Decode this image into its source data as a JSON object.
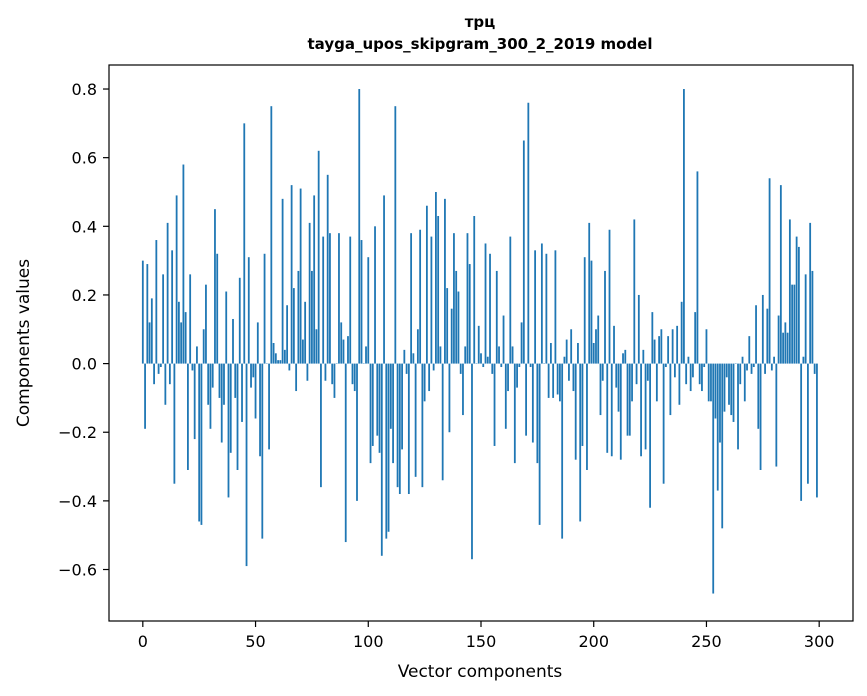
{
  "chart_data": {
    "type": "bar",
    "title": "трц",
    "subtitle": "tayga_upos_skipgram_300_2_2019 model",
    "xlabel": "Vector components",
    "ylabel": "Components values",
    "xlim": [
      -15,
      315
    ],
    "ylim": [
      -0.75,
      0.87
    ],
    "xticks": [
      0,
      50,
      100,
      150,
      200,
      250,
      300
    ],
    "yticks": [
      -0.6,
      -0.4,
      -0.2,
      0.0,
      0.2,
      0.4,
      0.6,
      0.8
    ],
    "xtick_labels": [
      "0",
      "50",
      "100",
      "150",
      "200",
      "250",
      "300"
    ],
    "ytick_labels": [
      "−0.6",
      "−0.4",
      "−0.2",
      "0.0",
      "0.2",
      "0.4",
      "0.6",
      "0.8"
    ],
    "bar_color": "#1f77b4",
    "values": [
      0.3,
      -0.19,
      0.29,
      0.12,
      0.19,
      -0.06,
      0.36,
      -0.03,
      -0.01,
      0.26,
      -0.12,
      0.41,
      -0.06,
      0.33,
      -0.35,
      0.49,
      0.18,
      0.12,
      0.58,
      0.15,
      -0.31,
      0.26,
      -0.02,
      -0.22,
      0.05,
      -0.46,
      -0.47,
      0.1,
      0.23,
      -0.12,
      -0.19,
      -0.07,
      0.45,
      0.32,
      -0.1,
      -0.23,
      -0.12,
      0.21,
      -0.39,
      -0.26,
      0.13,
      -0.1,
      -0.31,
      0.25,
      -0.17,
      0.7,
      -0.59,
      0.31,
      -0.07,
      -0.04,
      -0.16,
      0.12,
      -0.27,
      -0.51,
      0.32,
      0.0,
      -0.25,
      0.75,
      0.06,
      0.03,
      0.01,
      0.01,
      0.48,
      0.04,
      0.17,
      -0.02,
      0.52,
      0.22,
      -0.08,
      0.27,
      0.51,
      0.07,
      0.18,
      -0.05,
      0.41,
      0.27,
      0.49,
      0.1,
      0.62,
      -0.36,
      0.37,
      -0.05,
      0.55,
      0.38,
      -0.06,
      -0.1,
      0.0,
      0.38,
      0.12,
      0.07,
      -0.52,
      0.08,
      0.37,
      -0.06,
      -0.08,
      -0.4,
      0.8,
      0.36,
      0.0,
      0.05,
      0.31,
      -0.29,
      -0.24,
      0.4,
      -0.21,
      -0.26,
      -0.56,
      0.49,
      -0.51,
      -0.49,
      -0.19,
      -0.29,
      0.75,
      -0.36,
      -0.38,
      -0.25,
      0.04,
      -0.03,
      -0.38,
      0.38,
      0.03,
      -0.33,
      0.1,
      0.39,
      -0.36,
      -0.11,
      0.46,
      -0.08,
      0.37,
      -0.02,
      0.5,
      0.43,
      0.05,
      -0.34,
      0.48,
      0.22,
      -0.2,
      0.16,
      0.38,
      0.27,
      0.21,
      -0.03,
      -0.15,
      0.05,
      0.38,
      0.29,
      -0.57,
      0.43,
      0.0,
      0.11,
      0.03,
      -0.01,
      0.35,
      0.02,
      0.32,
      -0.03,
      -0.24,
      0.27,
      0.05,
      -0.01,
      0.14,
      -0.19,
      -0.08,
      0.37,
      0.05,
      -0.29,
      -0.07,
      -0.01,
      0.12,
      0.65,
      -0.21,
      0.76,
      -0.01,
      -0.23,
      0.33,
      -0.29,
      -0.47,
      0.35,
      0.0,
      0.32,
      -0.1,
      0.06,
      -0.1,
      0.33,
      -0.09,
      -0.11,
      -0.51,
      0.02,
      0.07,
      -0.05,
      0.1,
      -0.08,
      -0.28,
      0.06,
      -0.46,
      -0.24,
      0.31,
      -0.31,
      0.41,
      0.3,
      0.06,
      0.1,
      0.14,
      -0.15,
      -0.05,
      0.27,
      -0.26,
      0.39,
      -0.27,
      0.11,
      -0.07,
      -0.14,
      -0.28,
      0.03,
      0.04,
      -0.21,
      -0.21,
      -0.11,
      0.42,
      -0.06,
      0.2,
      -0.27,
      0.04,
      -0.25,
      -0.05,
      -0.42,
      0.15,
      0.07,
      -0.11,
      0.08,
      0.1,
      -0.35,
      -0.01,
      0.08,
      -0.15,
      0.1,
      -0.04,
      0.11,
      -0.12,
      0.18,
      0.8,
      -0.06,
      0.02,
      -0.08,
      -0.04,
      0.15,
      0.56,
      -0.06,
      -0.08,
      -0.01,
      0.1,
      -0.11,
      -0.11,
      -0.67,
      -0.16,
      -0.37,
      -0.23,
      -0.48,
      -0.14,
      -0.04,
      -0.12,
      -0.15,
      -0.17,
      0.0,
      -0.25,
      -0.06,
      0.02,
      -0.11,
      -0.02,
      0.08,
      -0.03,
      -0.01,
      0.17,
      -0.19,
      -0.31,
      0.2,
      -0.03,
      0.16,
      0.54,
      -0.02,
      0.02,
      -0.3,
      0.14,
      0.52,
      0.09,
      0.12,
      0.09,
      0.42,
      0.23,
      0.23,
      0.37,
      0.34,
      -0.4,
      0.02,
      0.26,
      -0.35,
      0.41,
      0.27,
      -0.03,
      -0.39
    ]
  }
}
